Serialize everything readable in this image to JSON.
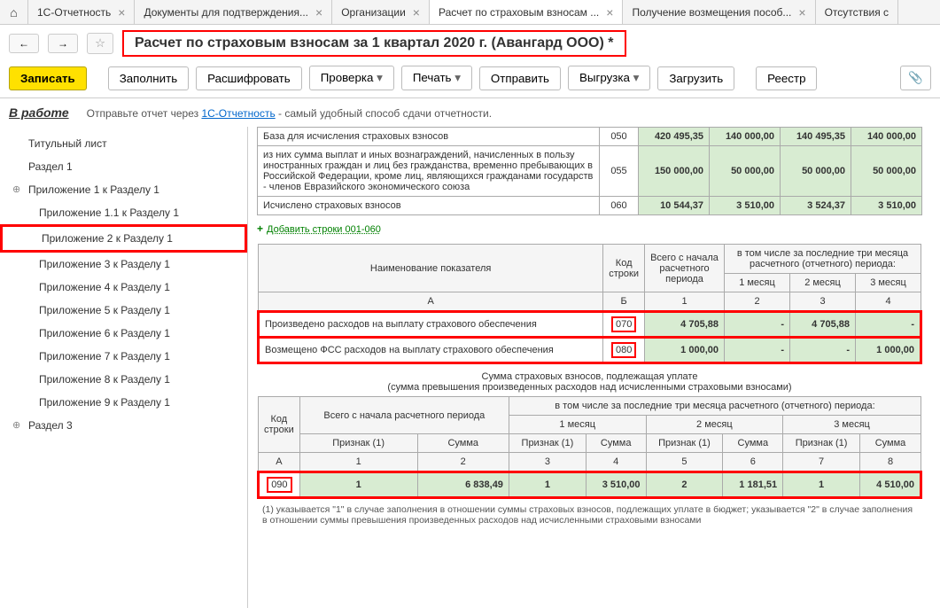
{
  "tabs": [
    {
      "label": "1С-Отчетность"
    },
    {
      "label": "Документы для подтверждения..."
    },
    {
      "label": "Организации"
    },
    {
      "label": "Расчет по страховым взносам ...",
      "active": true
    },
    {
      "label": "Получение возмещения пособ..."
    },
    {
      "label": "Отсутствия с"
    }
  ],
  "pageTitle": "Расчет по страховым взносам за 1 квартал 2020 г. (Авангард ООО) *",
  "toolbar": {
    "write": "Записать",
    "fill": "Заполнить",
    "decode": "Расшифровать",
    "check": "Проверка",
    "print": "Печать",
    "send": "Отправить",
    "export": "Выгрузка",
    "load": "Загрузить",
    "registry": "Реестр"
  },
  "status": "В работе",
  "infoPrefix": "Отправьте отчет через ",
  "infoLink": "1С-Отчетность",
  "infoSuffix": " - самый удобный способ сдачи отчетности.",
  "sidebar": [
    {
      "label": "Титульный лист",
      "lvl": 0
    },
    {
      "label": "Раздел 1",
      "lvl": 0
    },
    {
      "label": "Приложение 1 к Разделу 1",
      "lvl": 0,
      "exp": true
    },
    {
      "label": "Приложение 1.1 к Разделу 1",
      "lvl": 1
    },
    {
      "label": "Приложение 2 к Разделу 1",
      "lvl": 1,
      "sel": true
    },
    {
      "label": "Приложение 3 к Разделу 1",
      "lvl": 1
    },
    {
      "label": "Приложение 4 к Разделу 1",
      "lvl": 1
    },
    {
      "label": "Приложение 5 к Разделу 1",
      "lvl": 1
    },
    {
      "label": "Приложение 6 к Разделу 1",
      "lvl": 1
    },
    {
      "label": "Приложение 7 к Разделу 1",
      "lvl": 1
    },
    {
      "label": "Приложение 8 к Разделу 1",
      "lvl": 1
    },
    {
      "label": "Приложение 9 к Разделу 1",
      "lvl": 1
    },
    {
      "label": "Раздел 3",
      "lvl": 0,
      "exp": true
    }
  ],
  "table1": {
    "rows": [
      {
        "desc": "База для исчисления страховых взносов",
        "code": "050",
        "v": [
          "420 495,35",
          "140 000,00",
          "140 495,35",
          "140 000,00"
        ]
      },
      {
        "desc": "из них сумма выплат и иных вознаграждений, начисленных в пользу иностранных граждан и лиц без гражданства, временно пребывающих в Российской Федерации, кроме лиц, являющихся гражданами государств - членов Евразийского экономического союза",
        "code": "055",
        "v": [
          "150 000,00",
          "50 000,00",
          "50 000,00",
          "50 000,00"
        ]
      },
      {
        "desc": "Исчислено страховых взносов",
        "code": "060",
        "v": [
          "10 544,37",
          "3 510,00",
          "3 524,37",
          "3 510,00"
        ]
      }
    ]
  },
  "addLinesLink": "Добавить строки 001-060",
  "table2": {
    "h_name": "Наименование показателя",
    "h_code": "Код строки",
    "h_total": "Всего с начала расчетного периода",
    "h_months": "в том числе за последние три месяца расчетного (отчетного) периода:",
    "h_m1": "1 месяц",
    "h_m2": "2 месяц",
    "h_m3": "3 месяц",
    "sub": [
      "А",
      "Б",
      "1",
      "2",
      "3",
      "4"
    ],
    "rows": [
      {
        "desc": "Произведено расходов на выплату страхового обеспечения",
        "code": "070",
        "v": [
          "4 705,88",
          "-",
          "4 705,88",
          "-"
        ],
        "red": true
      },
      {
        "desc": "Возмещено ФСС расходов на выплату страхового обеспечения",
        "code": "080",
        "v": [
          "1 000,00",
          "-",
          "-",
          "1 000,00"
        ],
        "red": true
      }
    ]
  },
  "midTitle1": "Сумма страховых взносов, подлежащая уплате",
  "midTitle2": "(сумма превышения произведенных расходов над исчисленными страховыми взносами)",
  "table3": {
    "h_code": "Код строки",
    "h_total": "Всего с начала расчетного периода",
    "h_months": "в том числе за последние три месяца расчетного (отчетного) периода:",
    "h_m1": "1 месяц",
    "h_m2": "2 месяц",
    "h_m3": "3 месяц",
    "h_sign": "Признак (1)",
    "h_sum": "Сумма",
    "sub": [
      "А",
      "1",
      "2",
      "3",
      "4",
      "5",
      "6",
      "7",
      "8"
    ],
    "row": {
      "code": "090",
      "cells": [
        "1",
        "6 838,49",
        "1",
        "3 510,00",
        "2",
        "1 181,51",
        "1",
        "4 510,00"
      ]
    }
  },
  "footnote": "(1) указывается \"1\" в случае заполнения в отношении суммы страховых взносов, подлежащих уплате в бюджет; указывается \"2\" в случае заполнения в отношении суммы превышения произведенных расходов над исчисленными страховыми взносами"
}
